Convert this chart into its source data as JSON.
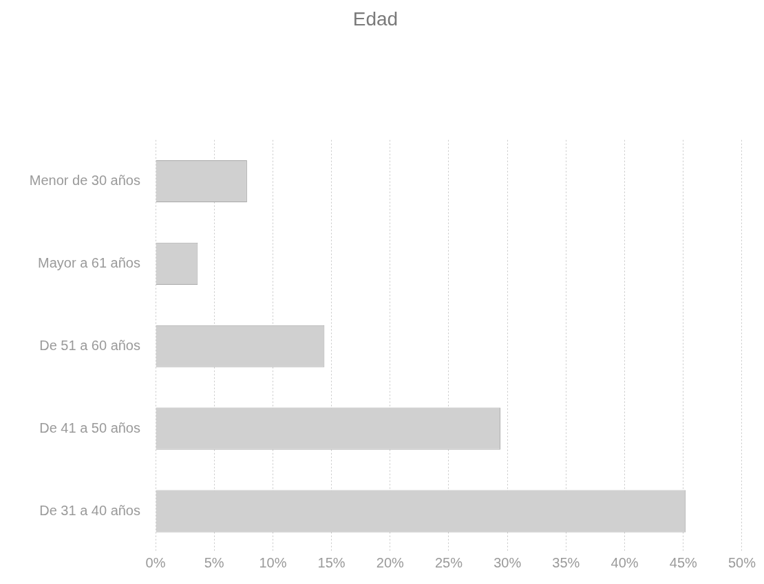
{
  "chart_data": {
    "type": "bar",
    "title": "Edad",
    "orientation": "horizontal",
    "categories": [
      "Menor de 30 años",
      "Mayor a 61 años",
      "De 51 a 60 años",
      "De 41 a 50 años",
      "De 31 a 40 años"
    ],
    "values": [
      7.8,
      3.6,
      14.4,
      29.4,
      45.2
    ],
    "color": "#d0d0d0",
    "xlim": [
      0,
      50
    ],
    "xticks": [
      {
        "value": 0,
        "label": "0%"
      },
      {
        "value": 5,
        "label": "5%"
      },
      {
        "value": 10,
        "label": "10%"
      },
      {
        "value": 15,
        "label": "15%"
      },
      {
        "value": 20,
        "label": "20%"
      },
      {
        "value": 25,
        "label": "25%"
      },
      {
        "value": 30,
        "label": "30%"
      },
      {
        "value": 35,
        "label": "35%"
      },
      {
        "value": 40,
        "label": "40%"
      },
      {
        "value": 45,
        "label": "45%"
      },
      {
        "value": 50,
        "label": "50%"
      }
    ],
    "grid": "x"
  }
}
